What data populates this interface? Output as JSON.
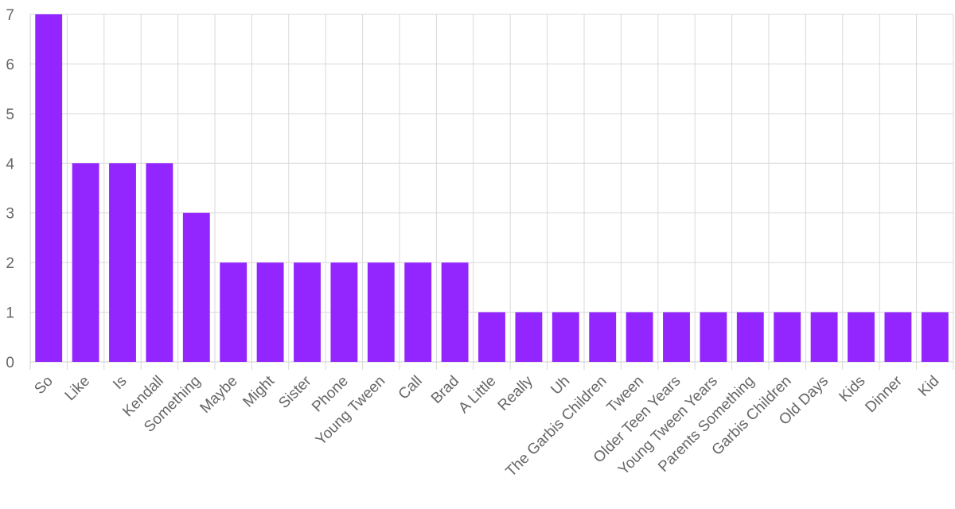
{
  "chart_data": {
    "type": "bar",
    "title": "",
    "xlabel": "",
    "ylabel": "",
    "ylim": [
      0,
      7
    ],
    "y_ticks": [
      "0",
      "1",
      "2",
      "3",
      "4",
      "5",
      "6",
      "7"
    ],
    "grid": true,
    "bar_color": "#9326ff",
    "categories": [
      "So",
      "Like",
      "Is",
      "Kendall",
      "Something",
      "Maybe",
      "Might",
      "Sister",
      "Phone",
      "Young Tween",
      "Call",
      "Brad",
      "A Little",
      "Really",
      "Uh",
      "The Garbis Children",
      "Tween",
      "Older Teen Years",
      "Young Tween Years",
      "Parents Something",
      "Garbis Children",
      "Old Days",
      "Kids",
      "Dinner",
      "Kid"
    ],
    "values": [
      7,
      4,
      4,
      4,
      3,
      2,
      2,
      2,
      2,
      2,
      2,
      2,
      1,
      1,
      1,
      1,
      1,
      1,
      1,
      1,
      1,
      1,
      1,
      1,
      1
    ]
  }
}
